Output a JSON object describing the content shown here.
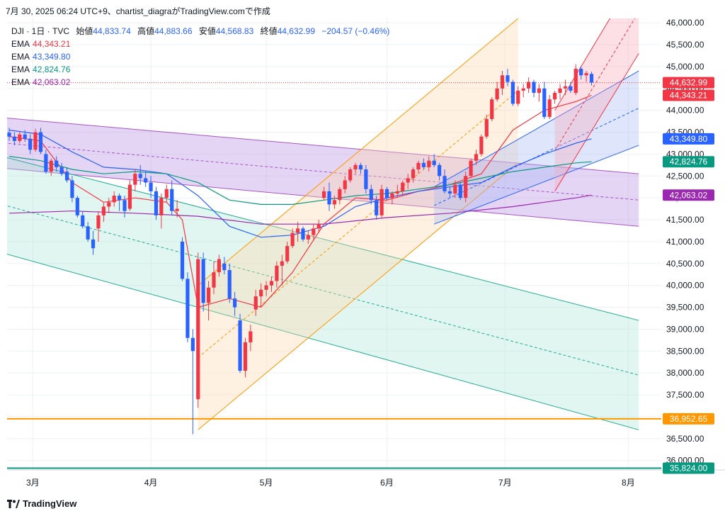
{
  "header": {
    "caption": "7月 30, 2025 06:24 UTC+9、chartist_diagraがTradingView.comで作成"
  },
  "legend": {
    "symbol": "DJI · 1日 · TVC",
    "open_label": "始値",
    "open": "44,833.74",
    "high_label": "高値",
    "high": "44,883.66",
    "low_label": "安値",
    "low": "44,568.83",
    "close_label": "終値",
    "close": "44,632.99",
    "change": "−204.57 (−0.46%)",
    "emas": [
      {
        "label": "EMA",
        "value": "44,343.21",
        "color": "#f23645"
      },
      {
        "label": "EMA",
        "value": "43,349.80",
        "color": "#2962ff"
      },
      {
        "label": "EMA",
        "value": "42,824.76",
        "color": "#089981"
      },
      {
        "label": "EMA",
        "value": "42,063.02",
        "color": "#9c27b0"
      }
    ]
  },
  "footer": {
    "brand": "TradingView"
  },
  "colors": {
    "up": "#f23645",
    "down": "#2962ff",
    "grid": "#eef0f3"
  },
  "chart_data": {
    "type": "candlestick",
    "y_ticks": [
      "36,000.00",
      "36,500.00",
      "37,000.00",
      "37,500.00",
      "38,000.00",
      "38,500.00",
      "39,000.00",
      "39,500.00",
      "40,000.00",
      "40,500.00",
      "41,000.00",
      "41,500.00",
      "42,000.00",
      "42,500.00",
      "43,000.00",
      "43,500.00",
      "44,000.00",
      "44,500.00",
      "45,000.00",
      "45,500.00",
      "46,000.00"
    ],
    "x_ticks": [
      "3月",
      "4月",
      "5月",
      "6月",
      "7月",
      "8月"
    ],
    "ylim": [
      35800,
      46100
    ],
    "price_labels": [
      {
        "text": "44,632.99",
        "value": 44632.99,
        "color": "#f23645"
      },
      {
        "text": "44,343.21",
        "value": 44343.21,
        "color": "#f23645"
      },
      {
        "text": "43,349.80",
        "value": 43349.8,
        "color": "#2962ff"
      },
      {
        "text": "42,824.76",
        "value": 42824.76,
        "color": "#089981"
      },
      {
        "text": "42,063.02",
        "value": 42063.02,
        "color": "#9c27b0"
      },
      {
        "text": "36,952.65",
        "value": 36952.65,
        "color": "#ff9800"
      },
      {
        "text": "35,824.00",
        "value": 35824.0,
        "color": "#089981"
      }
    ],
    "horizontal_lines": [
      {
        "value": 36952.65,
        "color": "#ff9800"
      },
      {
        "value": 35824.0,
        "color": "#089981"
      }
    ],
    "current_price": 44632.99,
    "candles": [
      [
        43490,
        43600,
        43300,
        43400
      ],
      [
        43400,
        43500,
        43200,
        43300
      ],
      [
        43300,
        43520,
        43250,
        43450
      ],
      [
        43450,
        43550,
        43280,
        43350
      ],
      [
        43350,
        43450,
        43000,
        43100
      ],
      [
        43100,
        43580,
        43050,
        43500
      ],
      [
        43500,
        43600,
        43000,
        43050
      ],
      [
        43000,
        43100,
        42550,
        42600
      ],
      [
        42600,
        42900,
        42500,
        42850
      ],
      [
        42850,
        42950,
        42600,
        42700
      ],
      [
        42700,
        42800,
        42500,
        42550
      ],
      [
        42600,
        42700,
        42350,
        42400
      ],
      [
        42400,
        42500,
        41900,
        42000
      ],
      [
        42000,
        42050,
        41550,
        41600
      ],
      [
        41600,
        41700,
        41300,
        41350
      ],
      [
        41350,
        41450,
        41000,
        41050
      ],
      [
        41050,
        41250,
        40700,
        40850
      ],
      [
        41300,
        41700,
        41000,
        41600
      ],
      [
        41600,
        41900,
        41450,
        41800
      ],
      [
        41800,
        42000,
        41650,
        41900
      ],
      [
        41900,
        42150,
        41800,
        42050
      ],
      [
        42050,
        42100,
        41700,
        41950
      ],
      [
        41950,
        42050,
        41550,
        41700
      ],
      [
        41750,
        42400,
        41700,
        42300
      ],
      [
        42300,
        42650,
        42150,
        42550
      ],
      [
        42550,
        42750,
        42300,
        42450
      ],
      [
        42450,
        42600,
        42250,
        42350
      ],
      [
        42350,
        42500,
        42000,
        42150
      ],
      [
        42150,
        42250,
        41500,
        41600
      ],
      [
        41600,
        42100,
        41300,
        42000
      ],
      [
        42000,
        42300,
        41900,
        42200
      ],
      [
        42200,
        42400,
        41600,
        41700
      ],
      [
        41700,
        41950,
        41550,
        41750
      ],
      [
        41000,
        41100,
        40100,
        40150
      ],
      [
        40150,
        40300,
        38700,
        38800
      ],
      [
        38800,
        39000,
        36600,
        38500
      ],
      [
        37400,
        40750,
        37200,
        40600
      ],
      [
        40600,
        40750,
        39400,
        39600
      ],
      [
        39600,
        40100,
        39200,
        39950
      ],
      [
        39950,
        40550,
        39800,
        40300
      ],
      [
        40300,
        40700,
        40200,
        40600
      ],
      [
        40500,
        40650,
        40250,
        40350
      ],
      [
        40350,
        40500,
        39600,
        39700
      ],
      [
        39700,
        39850,
        39300,
        39500
      ],
      [
        39200,
        39350,
        38000,
        38050
      ],
      [
        38050,
        38800,
        37900,
        38700
      ],
      [
        38700,
        39100,
        38500,
        38950
      ],
      [
        39450,
        39900,
        39300,
        39750
      ],
      [
        39750,
        40050,
        39500,
        39900
      ],
      [
        39900,
        40100,
        39750,
        40000
      ],
      [
        40000,
        40200,
        39850,
        40100
      ],
      [
        40100,
        40550,
        39950,
        40450
      ],
      [
        40450,
        40700,
        40000,
        40550
      ],
      [
        40550,
        41000,
        40500,
        40900
      ],
      [
        40900,
        41300,
        40850,
        41200
      ],
      [
        41200,
        41450,
        41000,
        41300
      ],
      [
        41300,
        41350,
        41000,
        41050
      ],
      [
        41050,
        41250,
        40950,
        41150
      ],
      [
        41150,
        41400,
        41050,
        41300
      ],
      [
        41300,
        41500,
        41200,
        41400
      ],
      [
        42000,
        42250,
        41950,
        42150
      ],
      [
        42150,
        42350,
        41700,
        41850
      ],
      [
        41850,
        42050,
        41750,
        41950
      ],
      [
        41950,
        42250,
        41850,
        42200
      ],
      [
        42200,
        42500,
        42100,
        42400
      ],
      [
        42400,
        42700,
        42350,
        42650
      ],
      [
        42650,
        42800,
        42550,
        42750
      ],
      [
        42750,
        42800,
        42550,
        42650
      ],
      [
        42650,
        42750,
        42100,
        42200
      ],
      [
        42200,
        42300,
        41850,
        41950
      ],
      [
        41950,
        42050,
        41500,
        41600
      ],
      [
        41600,
        42300,
        41550,
        42200
      ],
      [
        42200,
        42250,
        41950,
        42000
      ],
      [
        42000,
        42150,
        41850,
        42100
      ],
      [
        42100,
        42300,
        42000,
        42150
      ],
      [
        42150,
        42400,
        42050,
        42350
      ],
      [
        42350,
        42550,
        42200,
        42450
      ],
      [
        42450,
        42700,
        42350,
        42650
      ],
      [
        42650,
        42850,
        42550,
        42800
      ],
      [
        42800,
        42900,
        42650,
        42700
      ],
      [
        42700,
        42950,
        42600,
        42850
      ],
      [
        42850,
        43000,
        42700,
        42750
      ],
      [
        42750,
        42800,
        42400,
        42500
      ],
      [
        42500,
        42650,
        42100,
        42150
      ],
      [
        42150,
        42250,
        42000,
        42100
      ],
      [
        42100,
        42400,
        42000,
        42300
      ],
      [
        42300,
        42350,
        41950,
        42000
      ],
      [
        42000,
        42600,
        41900,
        42500
      ],
      [
        42500,
        42900,
        42450,
        42850
      ],
      [
        42850,
        43100,
        42750,
        43000
      ],
      [
        43000,
        43450,
        42950,
        43400
      ],
      [
        43400,
        43900,
        43350,
        43800
      ],
      [
        43800,
        44300,
        43750,
        44250
      ],
      [
        44250,
        44650,
        44200,
        44500
      ],
      [
        44500,
        44900,
        44350,
        44800
      ],
      [
        44800,
        44950,
        44550,
        44650
      ],
      [
        44650,
        44700,
        44100,
        44150
      ],
      [
        44150,
        44550,
        44100,
        44450
      ],
      [
        44450,
        44600,
        44300,
        44500
      ],
      [
        44500,
        44750,
        44400,
        44650
      ],
      [
        44650,
        44700,
        44300,
        44400
      ],
      [
        44400,
        44600,
        44200,
        44500
      ],
      [
        44500,
        44650,
        43800,
        43850
      ],
      [
        43850,
        44350,
        43800,
        44250
      ],
      [
        44250,
        44450,
        44150,
        44400
      ],
      [
        44400,
        44600,
        44250,
        44500
      ],
      [
        44500,
        44700,
        44350,
        44550
      ],
      [
        44550,
        44650,
        44400,
        44450
      ],
      [
        44400,
        45050,
        44350,
        44950
      ],
      [
        44950,
        45000,
        44700,
        44800
      ],
      [
        44800,
        44900,
        44650,
        44850
      ],
      [
        44833.74,
        44883.66,
        44568.83,
        44632.99
      ]
    ],
    "ema_lines": [
      {
        "value_label": "44,343.21",
        "color": "#f23645",
        "points": [
          [
            0,
            43400
          ],
          [
            6,
            43300
          ],
          [
            12,
            42350
          ],
          [
            18,
            41900
          ],
          [
            24,
            42000
          ],
          [
            30,
            41900
          ],
          [
            33,
            41500
          ],
          [
            36,
            39500
          ],
          [
            42,
            39700
          ],
          [
            48,
            39500
          ],
          [
            54,
            40300
          ],
          [
            60,
            41400
          ],
          [
            66,
            42000
          ],
          [
            72,
            41950
          ],
          [
            78,
            42150
          ],
          [
            84,
            42300
          ],
          [
            90,
            42550
          ],
          [
            96,
            43550
          ],
          [
            102,
            44000
          ],
          [
            108,
            44200
          ],
          [
            111,
            44343
          ]
        ]
      },
      {
        "value_label": "43,349.80",
        "color": "#2962ff",
        "points": [
          [
            0,
            43550
          ],
          [
            6,
            43450
          ],
          [
            12,
            43050
          ],
          [
            18,
            42700
          ],
          [
            24,
            42650
          ],
          [
            30,
            42550
          ],
          [
            36,
            42050
          ],
          [
            42,
            41350
          ],
          [
            48,
            41100
          ],
          [
            54,
            41150
          ],
          [
            60,
            41350
          ],
          [
            66,
            41800
          ],
          [
            72,
            42000
          ],
          [
            78,
            42150
          ],
          [
            84,
            42250
          ],
          [
            90,
            42350
          ],
          [
            96,
            42700
          ],
          [
            102,
            43000
          ],
          [
            108,
            43250
          ],
          [
            111,
            43350
          ]
        ]
      },
      {
        "value_label": "42,824.76",
        "color": "#089981",
        "points": [
          [
            0,
            42950
          ],
          [
            6,
            42850
          ],
          [
            12,
            42650
          ],
          [
            18,
            42550
          ],
          [
            24,
            42600
          ],
          [
            30,
            42550
          ],
          [
            36,
            42350
          ],
          [
            42,
            41950
          ],
          [
            48,
            41850
          ],
          [
            54,
            41850
          ],
          [
            60,
            41950
          ],
          [
            66,
            42050
          ],
          [
            72,
            42100
          ],
          [
            78,
            42200
          ],
          [
            84,
            42300
          ],
          [
            90,
            42450
          ],
          [
            96,
            42600
          ],
          [
            102,
            42700
          ],
          [
            108,
            42800
          ],
          [
            111,
            42825
          ]
        ]
      },
      {
        "value_label": "42,063.02",
        "color": "#9c27b0",
        "points": [
          [
            0,
            41650
          ],
          [
            12,
            41700
          ],
          [
            24,
            41650
          ],
          [
            36,
            41580
          ],
          [
            48,
            41400
          ],
          [
            60,
            41400
          ],
          [
            72,
            41550
          ],
          [
            84,
            41650
          ],
          [
            96,
            41800
          ],
          [
            108,
            42000
          ],
          [
            111,
            42063
          ]
        ]
      }
    ],
    "channels": [
      {
        "name": "",
        "fill": "#b388e0",
        "stroke": "#a855c8",
        "x1": -3,
        "y1_top": 43850,
        "y1_bot": 42700,
        "x2": 120,
        "y2_top": 42550,
        "y2_bot": 41350
      },
      {
        "name": "",
        "fill": "#a8e6d4",
        "stroke": "#22ab94",
        "x1": -3,
        "y1_top": 43000,
        "y1_bot": 40800,
        "x2": 120,
        "y2_top": 39200,
        "y2_bot": 36700
      },
      {
        "name": "",
        "fill": "#ffd8a8",
        "stroke": "#ff9800",
        "x1": 36,
        "y1_top": 40000,
        "y1_bot": 36700,
        "x2": 97,
        "y2_top": 46100,
        "y2_bot": 42800
      },
      {
        "name": "",
        "fill": "#a4b8f5",
        "stroke": "#2962ff",
        "x1": 81,
        "y1_top": 42250,
        "y1_bot": 41400,
        "x2": 120,
        "y2_top": 44900,
        "y2_bot": 43200
      },
      {
        "name": "",
        "fill": "#f5a7b4",
        "stroke": "#f23645",
        "x1": 104,
        "y1_top": 44000,
        "y1_bot": 42150,
        "x2": 120,
        "y2_top": 47200,
        "y2_bot": 45300
      }
    ]
  }
}
